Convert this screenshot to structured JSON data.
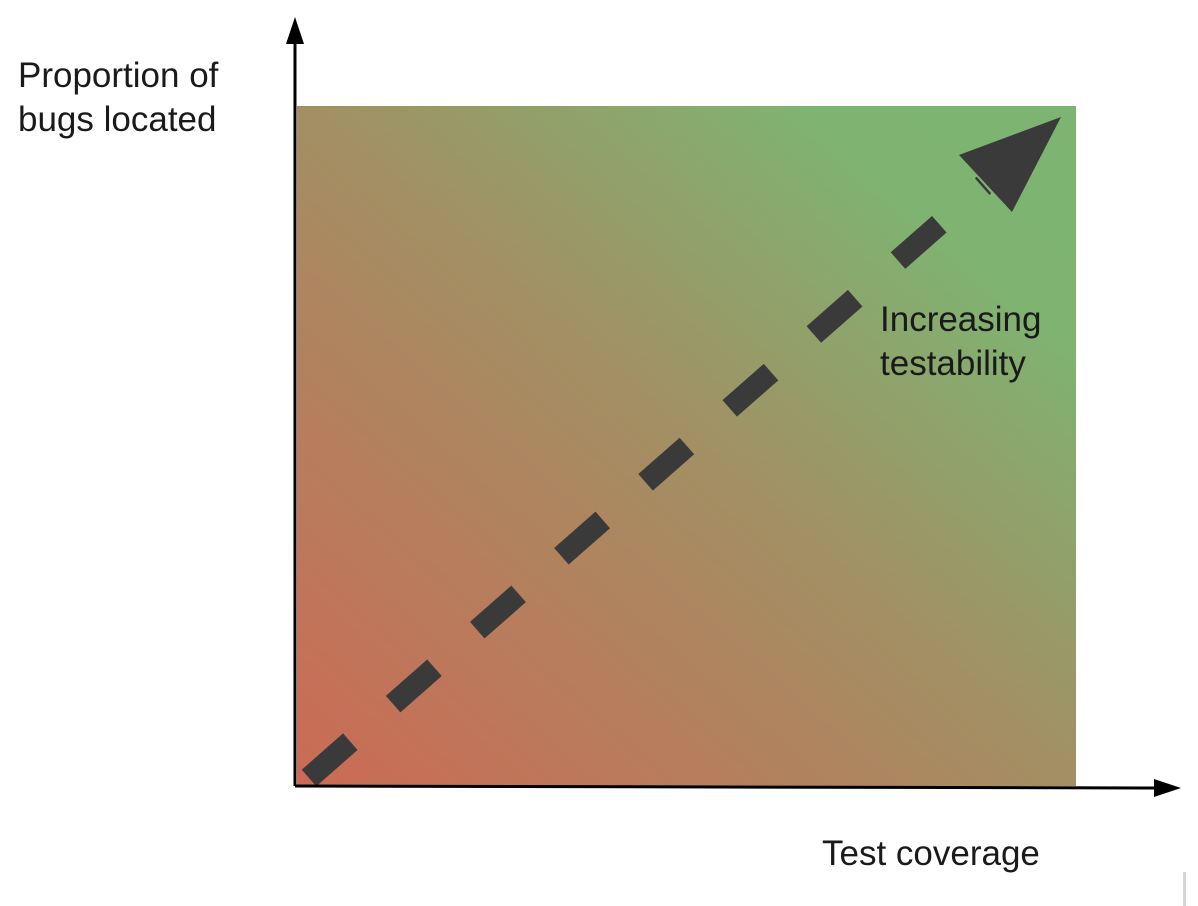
{
  "diagram": {
    "y_axis_label_line1": "Proportion of",
    "y_axis_label_line2": "bugs located",
    "x_axis_label": "Test coverage",
    "arrow_label_line1": "Increasing",
    "arrow_label_line2": "testability"
  },
  "colors": {
    "gradient_low": "#cc6a55",
    "gradient_mid": "#a38f63",
    "gradient_high": "#7db471",
    "axis": "#000000",
    "arrow": "#3a3a3a",
    "text": "#1a1a1a"
  }
}
